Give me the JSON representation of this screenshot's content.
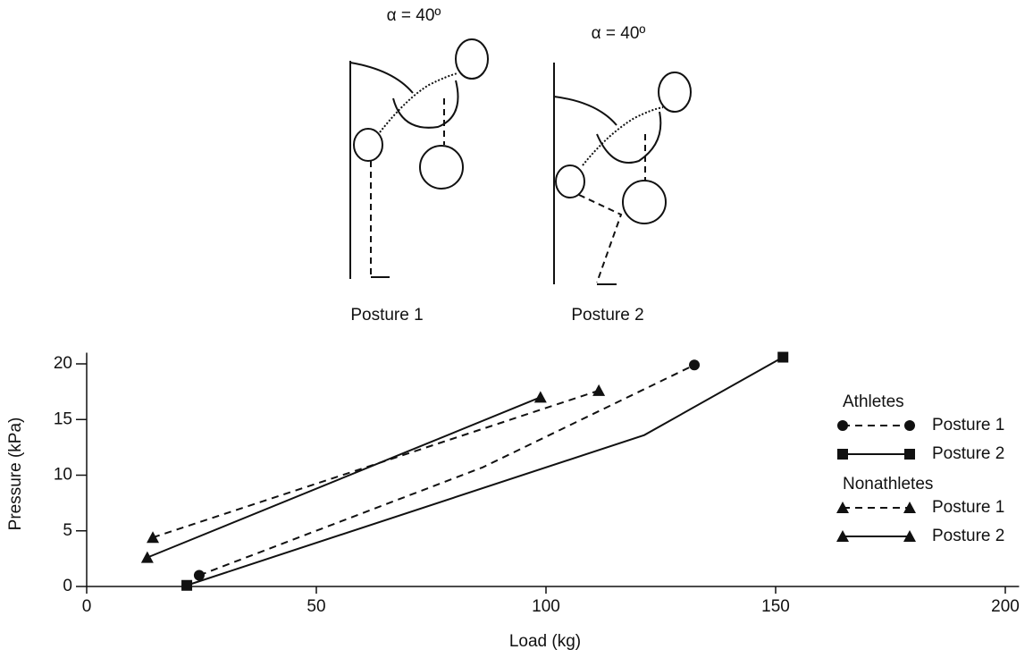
{
  "illustration": {
    "panels": [
      {
        "angle_label": "α = 40º",
        "caption": "Posture 1"
      },
      {
        "angle_label": "α = 40º",
        "caption": "Posture 2"
      }
    ]
  },
  "chart_data": {
    "type": "line",
    "x_label": "Load (kg)",
    "y_label": "Pressure (kPa)",
    "xlim": [
      0,
      203
    ],
    "ylim": [
      0,
      21
    ],
    "xticks": [
      0,
      50,
      100,
      150,
      200
    ],
    "yticks": [
      0,
      5,
      10,
      15,
      20
    ],
    "series": [
      {
        "group": "Athletes",
        "name": "Posture 1",
        "color": "#111111",
        "dash": true,
        "marker": "circle",
        "x": [
          24.5,
          86.2,
          132.3
        ],
        "values": [
          1.0,
          10.7,
          19.9
        ]
      },
      {
        "group": "Athletes",
        "name": "Posture 2",
        "color": "#111111",
        "dash": false,
        "marker": "square",
        "x": [
          21.8,
          121.4,
          151.6
        ],
        "values": [
          0.1,
          13.6,
          20.6
        ]
      },
      {
        "group": "Nonathletes",
        "name": "Posture 1",
        "color": "#111111",
        "dash": true,
        "marker": "triangle",
        "x": [
          14.4,
          111.5
        ],
        "values": [
          4.4,
          17.6
        ]
      },
      {
        "group": "Nonathletes",
        "name": "Posture 2",
        "color": "#111111",
        "dash": false,
        "marker": "triangle",
        "x": [
          13.2,
          98.8
        ],
        "values": [
          2.6,
          17.0
        ]
      }
    ]
  }
}
